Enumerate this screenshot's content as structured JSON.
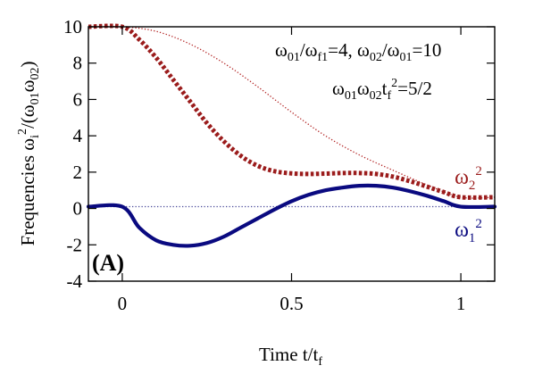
{
  "chart_data": {
    "type": "line",
    "xlabel": {
      "main": "Time t/t",
      "sub": "f"
    },
    "ylabel": {
      "p1": "Frequencies ω",
      "p1_sub": "i",
      "p1_sup": "2",
      "p2": "/(ω",
      "p2_sub1": "01",
      "p3": "ω",
      "p2_sub2": "02",
      "p4": ")"
    },
    "xlim": [
      -0.1,
      1.1
    ],
    "ylim": [
      -4,
      10
    ],
    "x_ticks": [
      {
        "value": 0,
        "label": "0"
      },
      {
        "value": 0.5,
        "label": "0.5"
      },
      {
        "value": 1,
        "label": "1"
      }
    ],
    "y_ticks": [
      {
        "value": -4,
        "label": "-4"
      },
      {
        "value": -2,
        "label": "-2"
      },
      {
        "value": 0,
        "label": "0"
      },
      {
        "value": 2,
        "label": "2"
      },
      {
        "value": 4,
        "label": "4"
      },
      {
        "value": 6,
        "label": "6"
      },
      {
        "value": 8,
        "label": "8"
      },
      {
        "value": 10,
        "label": "10"
      }
    ],
    "panel_label": "(A)",
    "annotations": {
      "line1": {
        "a": "ω",
        "a_sub": "01",
        "b": "/ω",
        "b_sub": "f1",
        "c": "=4, ω",
        "c_sub": "02",
        "d": "/ω",
        "d_sub": "01",
        "e": "=10"
      },
      "line2": {
        "a": "ω",
        "a_sub": "01",
        "b": "ω",
        "b_sub": "02",
        "c": "t",
        "c_sub": "f",
        "c_sup": "2",
        "d": "=5/2"
      }
    },
    "series": [
      {
        "name": "ω2^2 (thin dotted)",
        "color": "#b22222",
        "style": "thin-dotted",
        "x": [
          -0.1,
          0.0,
          0.1,
          0.2,
          0.3,
          0.4,
          0.5,
          0.6,
          0.7,
          0.8,
          0.9,
          1.0,
          1.1
        ],
        "y": [
          10,
          10,
          9.75,
          9.05,
          8.0,
          6.7,
          5.3,
          4.0,
          2.95,
          2.1,
          1.3,
          0.62,
          0.62
        ]
      },
      {
        "name": "ω2^2 (thick dotted)",
        "color": "#9b1c1c",
        "style": "thick-dotted",
        "x": [
          -0.1,
          0.0,
          0.05,
          0.1,
          0.15,
          0.2,
          0.25,
          0.3,
          0.35,
          0.4,
          0.45,
          0.5,
          0.55,
          0.6,
          0.65,
          0.7,
          0.75,
          0.8,
          0.85,
          0.9,
          0.95,
          1.0,
          1.1
        ],
        "y": [
          10,
          10,
          9.3,
          8.3,
          7.1,
          5.9,
          4.7,
          3.7,
          2.9,
          2.35,
          2.05,
          1.93,
          1.9,
          1.92,
          1.95,
          1.95,
          1.9,
          1.75,
          1.5,
          1.2,
          0.9,
          0.62,
          0.62
        ]
      },
      {
        "name": "ω1^2 (thin dotted)",
        "color": "#4a4a9a",
        "style": "thin-dotted",
        "x": [
          -0.1,
          1.1
        ],
        "y": [
          0.1,
          0.1
        ]
      },
      {
        "name": "ω1^2 (thick solid)",
        "color": "#0a0a80",
        "style": "thick-solid",
        "x": [
          -0.1,
          0.0,
          0.05,
          0.1,
          0.15,
          0.2,
          0.25,
          0.3,
          0.35,
          0.4,
          0.45,
          0.5,
          0.55,
          0.6,
          0.65,
          0.7,
          0.75,
          0.8,
          0.85,
          0.9,
          0.95,
          1.0,
          1.1
        ],
        "y": [
          0.1,
          0.1,
          -1.05,
          -1.75,
          -2.0,
          -2.05,
          -1.9,
          -1.55,
          -1.05,
          -0.55,
          -0.05,
          0.4,
          0.75,
          1.0,
          1.15,
          1.25,
          1.25,
          1.15,
          0.95,
          0.7,
          0.4,
          0.1,
          0.1
        ]
      }
    ],
    "series_labels": [
      {
        "text": "ω",
        "sub": "2",
        "sup": "2",
        "color": "#9b1c1c",
        "x": 1.0,
        "y": 1.35
      },
      {
        "text": "ω",
        "sub": "1",
        "sup": "2",
        "color": "#0a0a80",
        "x": 1.0,
        "y": -1.55
      }
    ]
  }
}
